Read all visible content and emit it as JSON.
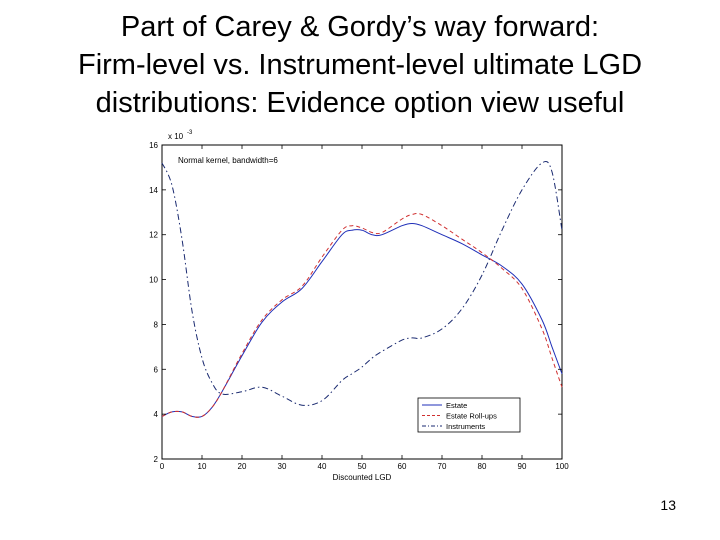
{
  "slide": {
    "title_lines": [
      "Part of Carey & Gordy’s way forward:",
      "Firm-level vs. Instrument-level ultimate LGD",
      "distributions:  Evidence option view useful"
    ],
    "page_number": "13"
  },
  "chart_data": {
    "type": "line",
    "title": "",
    "annotation": "Normal kernel, bandwidth=6",
    "xlabel": "Discounted LGD",
    "ylabel": "",
    "y_multiplier_label": "x 10^-3",
    "xlim": [
      0,
      100
    ],
    "ylim": [
      2,
      16
    ],
    "xticks": [
      0,
      10,
      20,
      30,
      40,
      50,
      60,
      70,
      80,
      90,
      100
    ],
    "yticks": [
      2,
      4,
      6,
      8,
      10,
      12,
      14,
      16
    ],
    "legend_position": "bottom-right",
    "x": [
      0,
      2.5,
      5,
      7.5,
      10,
      12.5,
      15,
      20,
      25,
      30,
      35,
      40,
      45,
      47.5,
      50,
      52.5,
      55,
      60,
      62.5,
      65,
      70,
      75,
      80,
      85,
      90,
      95,
      97.5,
      100
    ],
    "series": [
      {
        "name": "Estate",
        "color": "#1f2fb8",
        "dash": "solid",
        "values": [
          3.9,
          4.1,
          4.1,
          3.9,
          3.9,
          4.3,
          5.0,
          6.6,
          8.1,
          9.0,
          9.6,
          10.8,
          12.0,
          12.2,
          12.2,
          12.0,
          12.0,
          12.4,
          12.5,
          12.4,
          12.0,
          11.6,
          11.1,
          10.6,
          9.8,
          8.2,
          7.0,
          5.8
        ]
      },
      {
        "name": "Estate Roll-ups",
        "color": "#d03030",
        "dash": "dashed",
        "values": [
          3.9,
          4.1,
          4.1,
          3.9,
          3.9,
          4.3,
          5.0,
          6.7,
          8.2,
          9.1,
          9.7,
          11.0,
          12.2,
          12.4,
          12.3,
          12.1,
          12.1,
          12.7,
          12.9,
          12.9,
          12.4,
          11.8,
          11.2,
          10.5,
          9.6,
          7.8,
          6.5,
          5.2
        ]
      },
      {
        "name": "Instruments",
        "color": "#1a2a70",
        "dash": "dashdot",
        "values": [
          15.2,
          14.2,
          11.8,
          8.6,
          6.5,
          5.4,
          4.9,
          5.0,
          5.2,
          4.8,
          4.4,
          4.6,
          5.5,
          5.8,
          6.1,
          6.5,
          6.8,
          7.3,
          7.4,
          7.4,
          7.8,
          8.7,
          10.2,
          12.2,
          14.0,
          15.2,
          14.8,
          12.2
        ]
      }
    ]
  }
}
